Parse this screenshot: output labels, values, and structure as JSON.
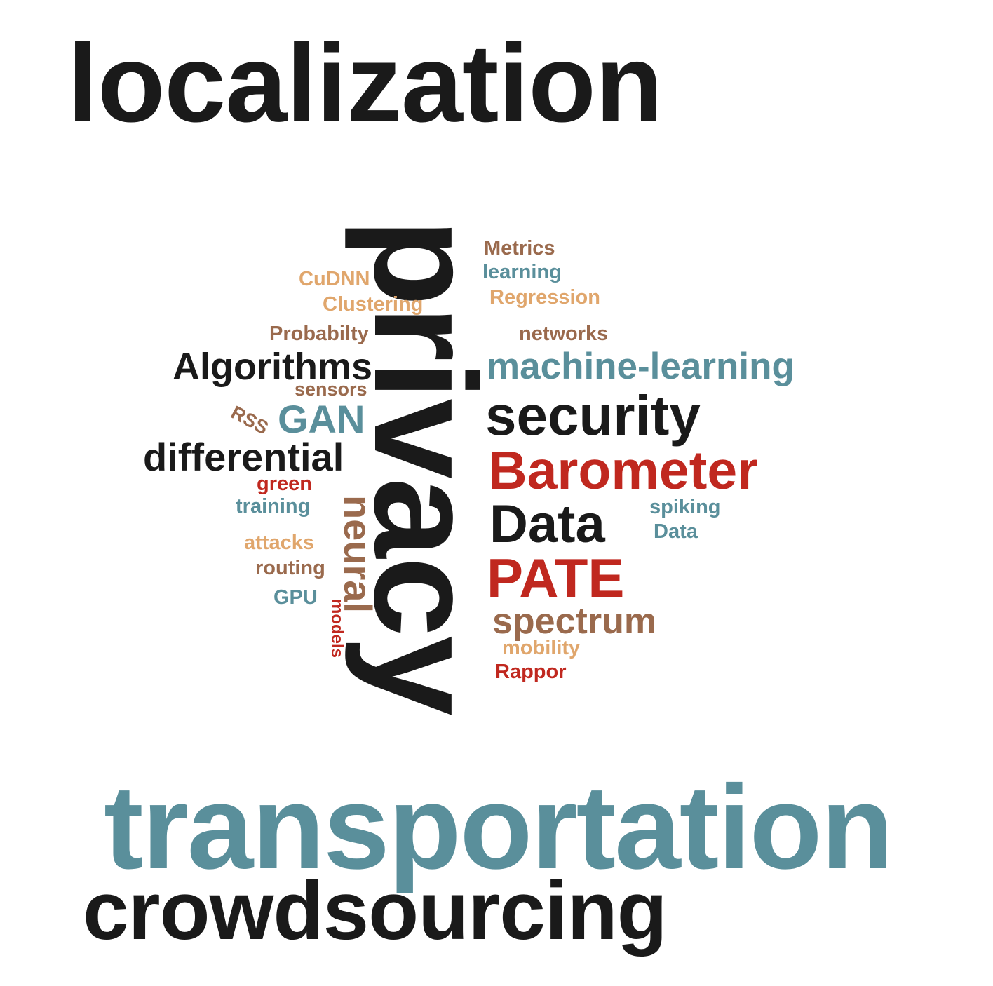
{
  "colors": {
    "black": "#1a1a1a",
    "teal": "#5a8f9b",
    "red": "#c0281f",
    "brown": "#9a6a4d",
    "tan": "#e0a66c"
  },
  "words": [
    {
      "id": "localization",
      "text": "localization",
      "color": "black"
    },
    {
      "id": "privacy",
      "text": "privacy",
      "color": "black"
    },
    {
      "id": "transportation",
      "text": "transportation",
      "color": "teal"
    },
    {
      "id": "crowdsourcing",
      "text": "crowdsourcing",
      "color": "black"
    },
    {
      "id": "metrics",
      "text": "Metrics",
      "color": "brown"
    },
    {
      "id": "learning",
      "text": "learning",
      "color": "teal"
    },
    {
      "id": "regression",
      "text": "Regression",
      "color": "tan"
    },
    {
      "id": "cudnn",
      "text": "CuDNN",
      "color": "tan"
    },
    {
      "id": "clustering",
      "text": "Clustering",
      "color": "tan"
    },
    {
      "id": "networks",
      "text": "networks",
      "color": "brown"
    },
    {
      "id": "probabilty",
      "text": "Probabilty",
      "color": "brown"
    },
    {
      "id": "algorithms",
      "text": "Algorithms",
      "color": "black"
    },
    {
      "id": "machine-learning",
      "text": "machine-learning",
      "color": "teal"
    },
    {
      "id": "sensors",
      "text": "sensors",
      "color": "brown"
    },
    {
      "id": "rss",
      "text": "RSS",
      "color": "brown"
    },
    {
      "id": "gan",
      "text": "GAN",
      "color": "teal"
    },
    {
      "id": "security",
      "text": "security",
      "color": "black"
    },
    {
      "id": "differential",
      "text": "differential",
      "color": "black"
    },
    {
      "id": "barometer",
      "text": "Barometer",
      "color": "red"
    },
    {
      "id": "green",
      "text": "green",
      "color": "red"
    },
    {
      "id": "neural",
      "text": "neural",
      "color": "brown"
    },
    {
      "id": "training",
      "text": "training",
      "color": "teal"
    },
    {
      "id": "data-big",
      "text": "Data",
      "color": "black"
    },
    {
      "id": "spiking",
      "text": "spiking",
      "color": "teal"
    },
    {
      "id": "data-small",
      "text": "Data",
      "color": "teal"
    },
    {
      "id": "attacks",
      "text": "attacks",
      "color": "tan"
    },
    {
      "id": "pate",
      "text": "PATE",
      "color": "red"
    },
    {
      "id": "routing",
      "text": "routing",
      "color": "brown"
    },
    {
      "id": "gpu",
      "text": "GPU",
      "color": "teal"
    },
    {
      "id": "models",
      "text": "models",
      "color": "red"
    },
    {
      "id": "spectrum",
      "text": "spectrum",
      "color": "brown"
    },
    {
      "id": "mobility",
      "text": "mobility",
      "color": "tan"
    },
    {
      "id": "rappor",
      "text": "Rappor",
      "color": "red"
    }
  ]
}
